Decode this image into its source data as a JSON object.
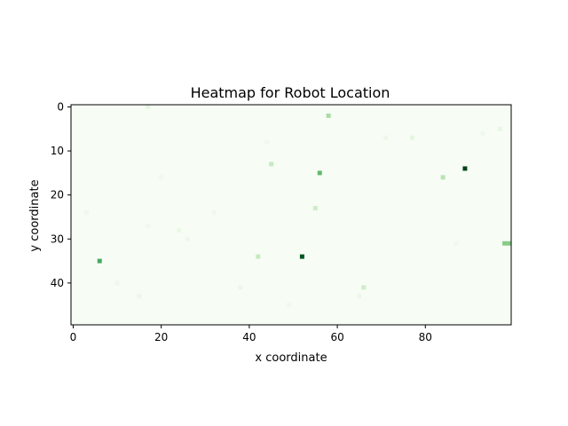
{
  "chart_data": {
    "type": "heatmap",
    "title": "Heatmap for Robot Location",
    "xlabel": "x coordinate",
    "ylabel": "y coordinate",
    "xlim": [
      0,
      100
    ],
    "ylim": [
      50,
      0
    ],
    "grid": false,
    "colormap": "Greens",
    "colors": {
      "background": "#f7fcf5",
      "low": "#e5f5e0",
      "mid": "#74c476",
      "high": "#00441b"
    },
    "x_ticks": [
      "0",
      "20",
      "40",
      "60",
      "80"
    ],
    "y_ticks": [
      "0",
      "10",
      "20",
      "30",
      "40"
    ],
    "cells": [
      {
        "x": 17,
        "y": 0,
        "v": 0.12
      },
      {
        "x": 58,
        "y": 2,
        "v": 0.35
      },
      {
        "x": 97,
        "y": 5,
        "v": 0.1
      },
      {
        "x": 93,
        "y": 6,
        "v": 0.06
      },
      {
        "x": 71,
        "y": 7,
        "v": 0.07
      },
      {
        "x": 77,
        "y": 7,
        "v": 0.12
      },
      {
        "x": 44,
        "y": 8,
        "v": 0.05
      },
      {
        "x": 45,
        "y": 13,
        "v": 0.25
      },
      {
        "x": 89,
        "y": 14,
        "v": 1.0
      },
      {
        "x": 56,
        "y": 15,
        "v": 0.55
      },
      {
        "x": 84,
        "y": 16,
        "v": 0.3
      },
      {
        "x": 20,
        "y": 16,
        "v": 0.05
      },
      {
        "x": 55,
        "y": 23,
        "v": 0.22
      },
      {
        "x": 3,
        "y": 24,
        "v": 0.06
      },
      {
        "x": 32,
        "y": 24,
        "v": 0.05
      },
      {
        "x": 17,
        "y": 27,
        "v": 0.05
      },
      {
        "x": 24,
        "y": 28,
        "v": 0.08
      },
      {
        "x": 26,
        "y": 30,
        "v": 0.06
      },
      {
        "x": 87,
        "y": 31,
        "v": 0.05
      },
      {
        "x": 98,
        "y": 31,
        "v": 0.45
      },
      {
        "x": 99,
        "y": 31,
        "v": 0.45
      },
      {
        "x": 52,
        "y": 34,
        "v": 0.95
      },
      {
        "x": 42,
        "y": 34,
        "v": 0.25
      },
      {
        "x": 6,
        "y": 35,
        "v": 0.62
      },
      {
        "x": 10,
        "y": 40,
        "v": 0.06
      },
      {
        "x": 38,
        "y": 41,
        "v": 0.08
      },
      {
        "x": 66,
        "y": 41,
        "v": 0.22
      },
      {
        "x": 65,
        "y": 43,
        "v": 0.08
      },
      {
        "x": 15,
        "y": 43,
        "v": 0.08
      },
      {
        "x": 49,
        "y": 45,
        "v": 0.05
      }
    ]
  }
}
